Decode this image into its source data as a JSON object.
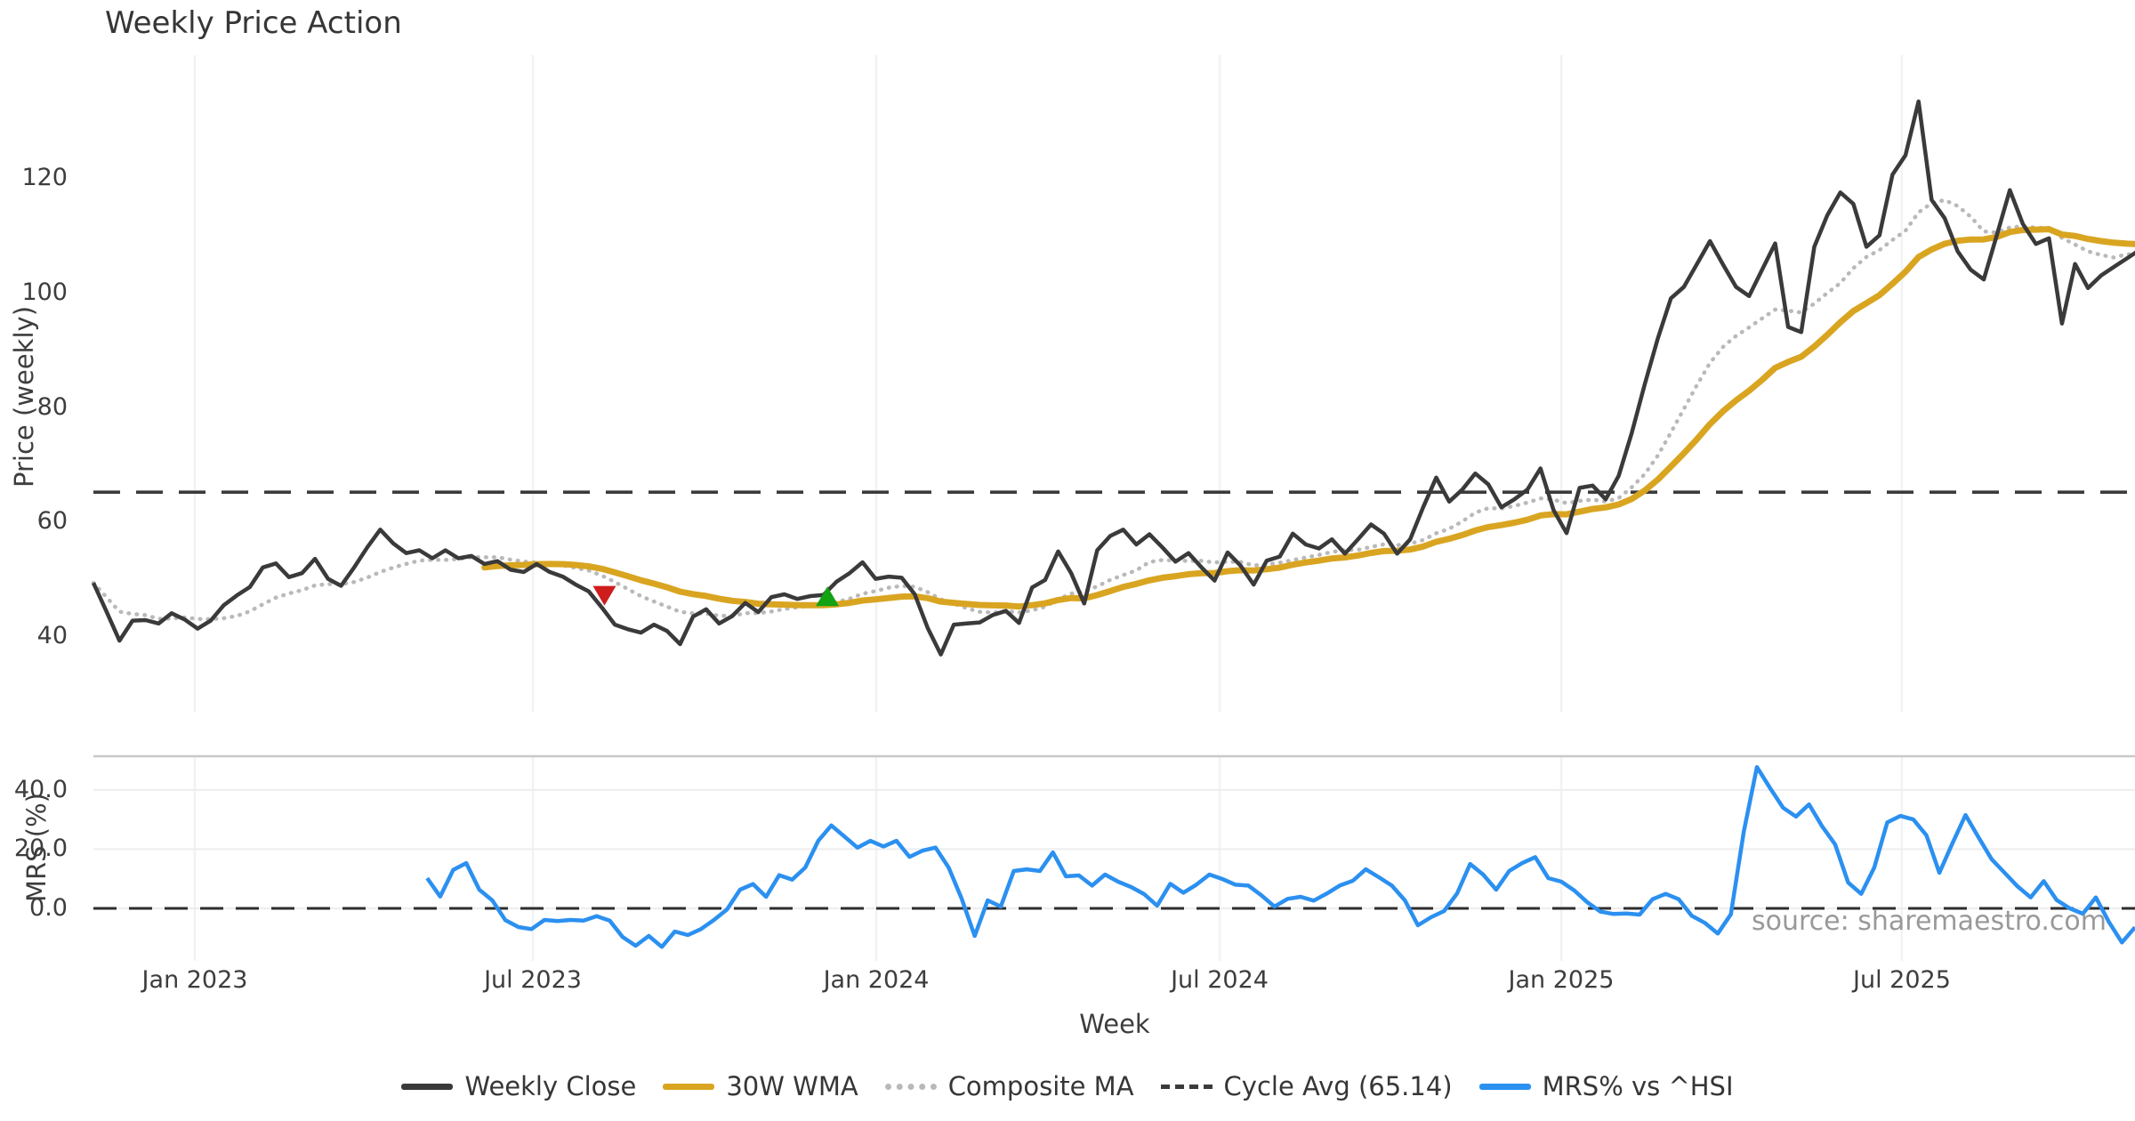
{
  "title": "Weekly Price Action",
  "source_note": "source: sharemaestro.com",
  "axes": {
    "x": {
      "label": "Week",
      "ticks": [
        {
          "label": "Jan 2023",
          "week": 7.78
        },
        {
          "label": "Jul 2023",
          "week": 33.71
        },
        {
          "label": "Jan 2024",
          "week": 60.05
        },
        {
          "label": "Jul 2024",
          "week": 86.39
        },
        {
          "label": "Jan 2025",
          "week": 112.59
        },
        {
          "label": "Jul 2025",
          "week": 138.72
        }
      ]
    },
    "price": {
      "label": "Price (weekly)",
      "tick_labels": [
        "40",
        "60",
        "80",
        "100",
        "120"
      ],
      "tick_values": [
        40,
        60,
        80,
        100,
        120
      ]
    },
    "mrs": {
      "label": "MRS (%)",
      "tick_labels": [
        "40.0",
        "20.0",
        "0.0"
      ],
      "tick_values": [
        40,
        20,
        0
      ]
    }
  },
  "legend": [
    {
      "label": "Weekly Close",
      "color": "#3a3a3a",
      "style": "solid"
    },
    {
      "label": "30W WMA",
      "color": "#d9a521",
      "style": "solid"
    },
    {
      "label": "Composite MA",
      "color": "#b9b9b9",
      "style": "dotted"
    },
    {
      "label": "Cycle Avg (65.14)",
      "color": "#3b3b3b",
      "style": "dashed"
    },
    {
      "label": "MRS% vs ^HSI",
      "color": "#2b90f0",
      "style": "solid"
    }
  ],
  "chart_data": {
    "type": "line",
    "x_unit": "weekly, Nov 2022 - Nov 2025",
    "panels": [
      {
        "id": "price",
        "ylabel": "Price (weekly)",
        "ylim": [
          33,
          139
        ],
        "grid": "vertical-only",
        "cycle_avg": 65.14,
        "series": [
          {
            "name": "Weekly Close",
            "color": "#3a3a3a",
            "width": 4.5,
            "style": "solid",
            "start_week": 0,
            "values": [
              49.3,
              44.3,
              39.2,
              42.7,
              42.8,
              42.2,
              44.0,
              42.9,
              41.3,
              42.7,
              45.4,
              47.1,
              48.6,
              52.0,
              52.7,
              50.3,
              51.0,
              53.5,
              50.0,
              48.8,
              52.0,
              55.5,
              58.6,
              56.2,
              54.5,
              55.0,
              53.6,
              55.0,
              53.6,
              54.0,
              52.6,
              53.1,
              51.6,
              51.2,
              52.6,
              51.2,
              50.4,
              49.0,
              47.8,
              45.0,
              42.0,
              41.2,
              40.6,
              42.0,
              40.9,
              38.6,
              43.4,
              44.7,
              42.2,
              43.5,
              45.8,
              44.2,
              46.8,
              47.3,
              46.5,
              47.0,
              47.2,
              49.5,
              51.0,
              52.9,
              50.0,
              50.4,
              50.2,
              47.3,
              41.4,
              36.8,
              42.0,
              42.2,
              42.4,
              43.7,
              44.4,
              42.3,
              48.5,
              49.8,
              54.8,
              51.0,
              45.7,
              55.0,
              57.5,
              58.6,
              56.0,
              57.8,
              55.5,
              53.0,
              54.5,
              52.0,
              49.7,
              54.6,
              52.3,
              49.0,
              53.2,
              53.9,
              57.9,
              56.0,
              55.3,
              56.9,
              54.4,
              56.9,
              59.5,
              57.9,
              54.4,
              56.9,
              62.5,
              67.7,
              63.5,
              65.6,
              68.4,
              66.5,
              62.5,
              63.9,
              65.6,
              69.3,
              62.0,
              58.0,
              65.9,
              66.3,
              63.9,
              68.0,
              75.5,
              84.0,
              92.0,
              99.0,
              101.0,
              105.0,
              109.0,
              104.9,
              101.0,
              99.4,
              104.0,
              108.6,
              94.0,
              93.1,
              108.0,
              113.5,
              117.5,
              115.5,
              108.0,
              110.0,
              120.6,
              124.0,
              133.4,
              116.2,
              113.0,
              107.2,
              104.0,
              102.3,
              110.0,
              117.9,
              112.0,
              108.5,
              109.5,
              94.6,
              105.0,
              100.8,
              103.0,
              104.5,
              106.0,
              107.5
            ]
          },
          {
            "name": "30W WMA",
            "color": "#d9a521",
            "width": 7,
            "style": "solid",
            "derived": "linear-weighted MA, 30 weeks, of Weekly Close"
          },
          {
            "name": "Composite MA",
            "color": "#b9b9b9",
            "width": 4.5,
            "style": "dotted",
            "derived": "mean of SMA5/SMA10/SMA20 of Weekly Close"
          },
          {
            "name": "Cycle Avg (65.14)",
            "color": "#3b3b3b",
            "width": 3.6,
            "style": "dashed",
            "value": 65.14
          }
        ],
        "markers": [
          {
            "week": 39.2,
            "value": 47.2,
            "shape": "triangle-down",
            "color": "#cf1d1d"
          },
          {
            "week": 56.3,
            "value": 46.8,
            "shape": "triangle-up",
            "color": "#12a212"
          }
        ]
      },
      {
        "id": "mrs",
        "ylabel": "MRS (%)",
        "ylim": [
          -17,
          51
        ],
        "grid": "horizontal-and-vertical",
        "zero_line": 0.0,
        "series": [
          {
            "name": "MRS% vs ^HSI",
            "color": "#2b90f0",
            "width": 4.5,
            "style": "solid",
            "start_week": 25.6,
            "values": [
              10.2,
              4.0,
              13.0,
              15.3,
              6.3,
              2.7,
              -4.0,
              -6.3,
              -7.0,
              -3.9,
              -4.3,
              -3.9,
              -4.1,
              -2.6,
              -4.1,
              -9.7,
              -12.6,
              -9.3,
              -13.0,
              -7.8,
              -9.0,
              -7.0,
              -3.9,
              -0.4,
              6.3,
              8.2,
              3.9,
              11.2,
              9.7,
              13.8,
              22.8,
              28.0,
              24.3,
              20.5,
              22.8,
              20.9,
              22.8,
              17.4,
              19.5,
              20.5,
              13.8,
              3.3,
              -9.3,
              2.7,
              0.6,
              12.6,
              13.2,
              12.6,
              18.9,
              10.8,
              11.1,
              7.7,
              11.4,
              9.0,
              7.2,
              4.8,
              0.9,
              8.3,
              5.3,
              8.0,
              11.4,
              9.9,
              8.0,
              7.7,
              4.4,
              0.6,
              3.2,
              3.9,
              2.6,
              5.0,
              7.7,
              9.3,
              13.2,
              10.5,
              7.7,
              2.7,
              -5.7,
              -3.0,
              -0.9,
              5.0,
              15.0,
              11.4,
              6.3,
              12.6,
              15.3,
              17.3,
              10.2,
              9.0,
              6.0,
              2.0,
              -1.1,
              -1.9,
              -1.7,
              -2.1,
              3.1,
              4.9,
              3.1,
              -2.5,
              -4.9,
              -8.5,
              -2.0,
              26.0,
              47.7,
              40.7,
              34.0,
              31.0,
              35.1,
              27.7,
              21.6,
              8.7,
              4.9,
              13.8,
              29.0,
              31.2,
              30.0,
              24.7,
              12.0,
              22.0,
              31.5,
              24.0,
              16.6,
              12.0,
              7.4,
              3.7,
              9.2,
              2.8,
              0.0,
              -1.8,
              3.7,
              -4.6,
              -11.5,
              -6.4
            ]
          }
        ]
      }
    ]
  }
}
